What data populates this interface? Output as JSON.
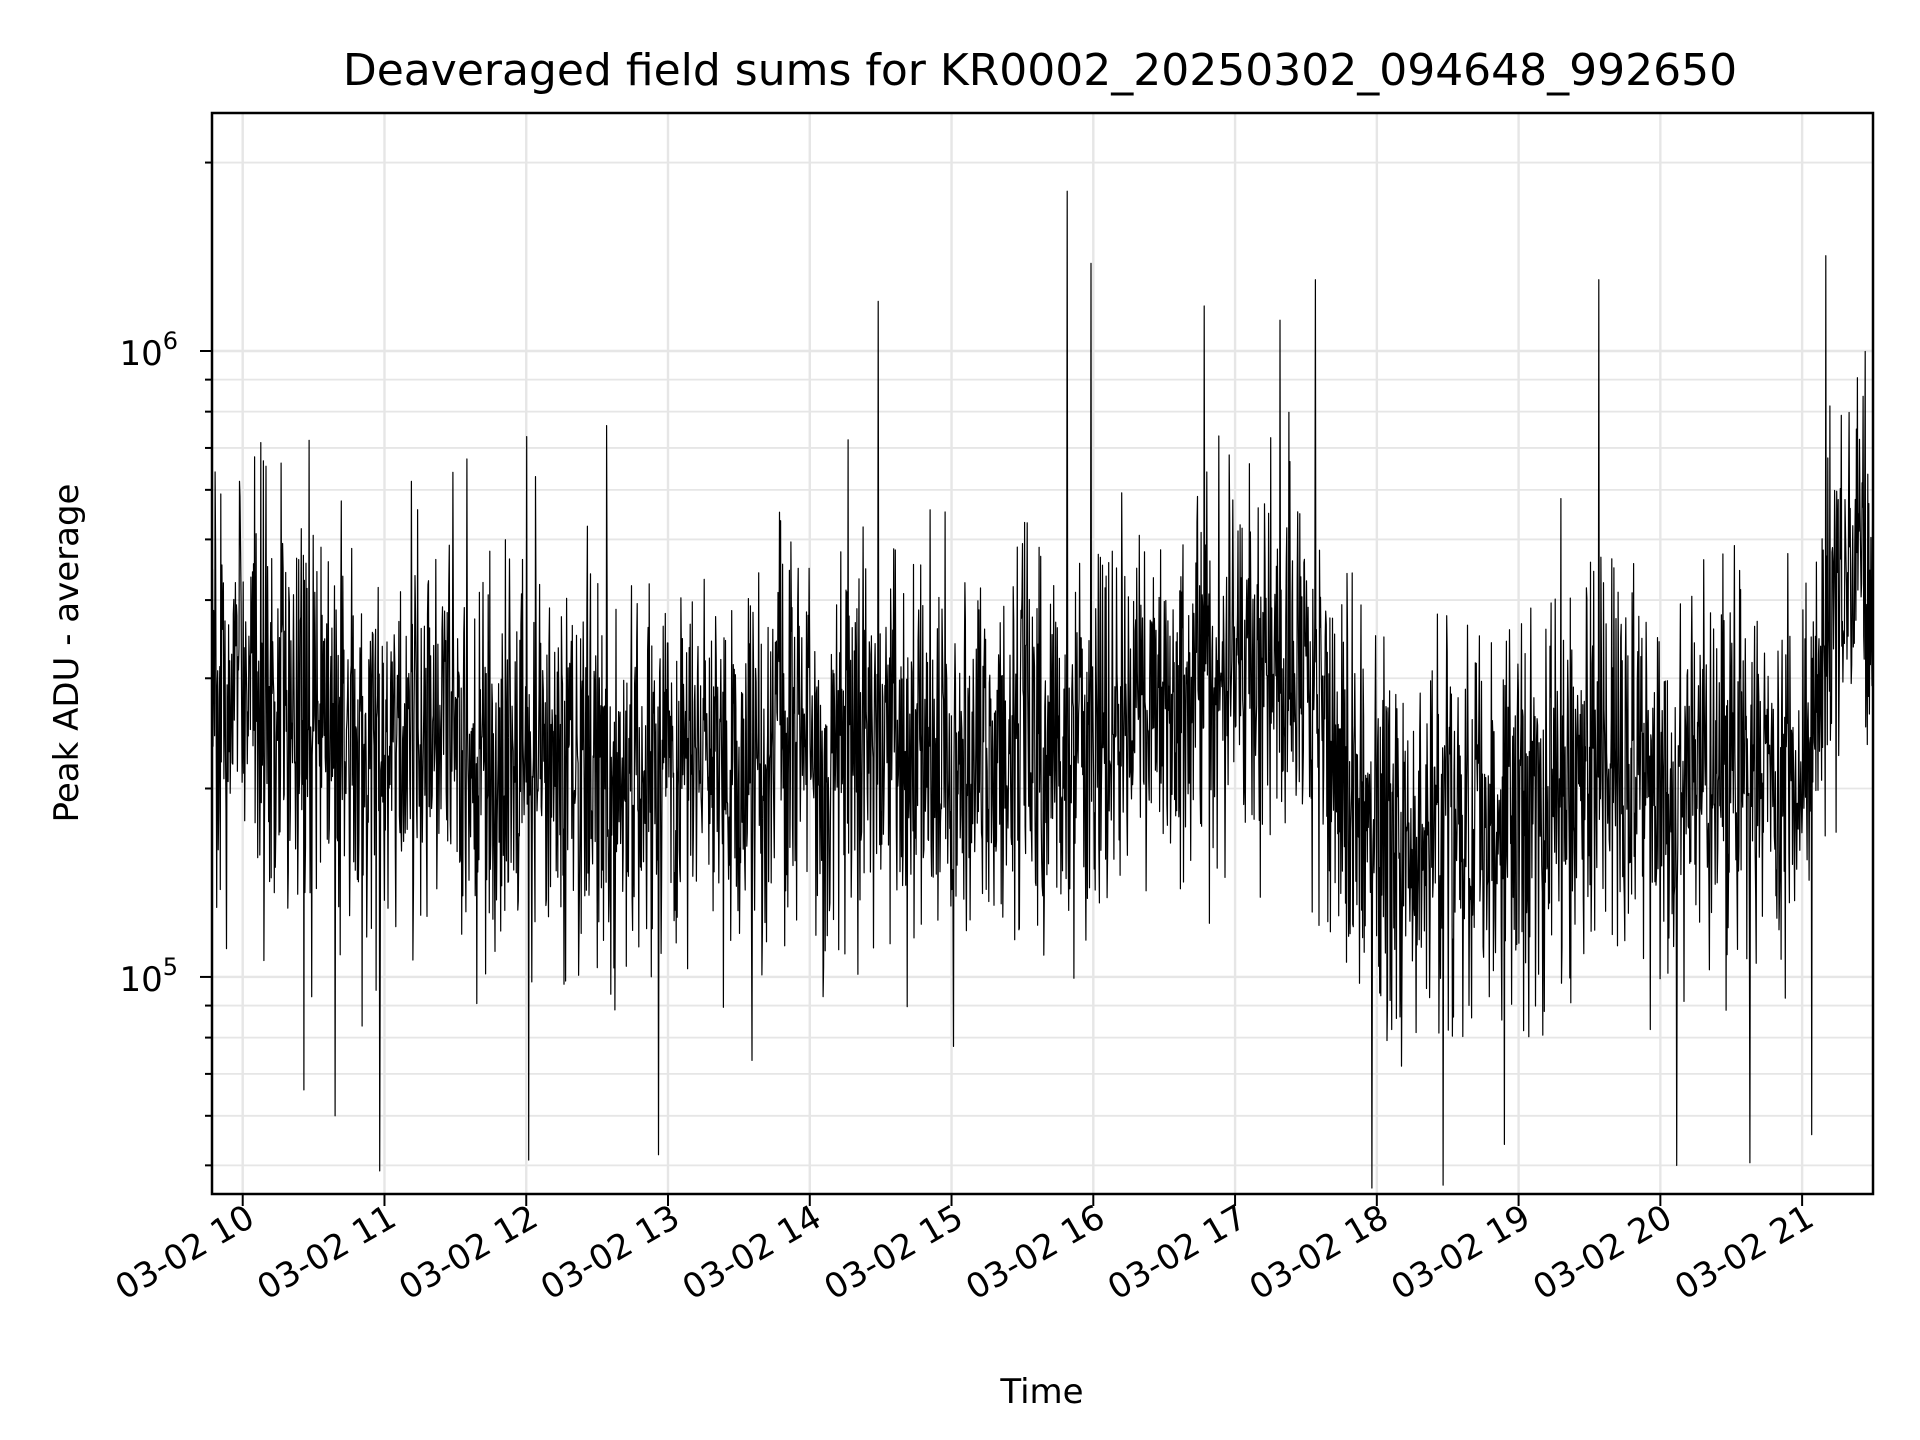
{
  "chart_data": {
    "type": "line",
    "title": "Deaveraged field sums for KR0002_20250302_094648_992650",
    "xlabel": "Time",
    "ylabel": "Peak ADU - average",
    "yscale": "log",
    "xlim": [
      "2025-03-02 09:47",
      "2025-03-02 21:30"
    ],
    "ylim": [
      45000,
      2400000
    ],
    "x_ticks": [
      "2025-03-02 10:00",
      "2025-03-02 11:00",
      "2025-03-02 12:00",
      "2025-03-02 13:00",
      "2025-03-02 14:00",
      "2025-03-02 15:00",
      "2025-03-02 16:00",
      "2025-03-02 17:00",
      "2025-03-02 18:00",
      "2025-03-02 19:00",
      "2025-03-02 20:00",
      "2025-03-02 21:00"
    ],
    "x_tick_labels": [
      "03-02 10",
      "03-02 11",
      "03-02 12",
      "03-02 13",
      "03-02 14",
      "03-02 15",
      "03-02 16",
      "03-02 17",
      "03-02 18",
      "03-02 19",
      "03-02 20",
      "03-02 21"
    ],
    "y_major_ticks": [
      100000,
      1000000
    ],
    "y_tick_base": "10",
    "y_tick_exponents": [
      "5",
      "6"
    ],
    "grid": true,
    "line_color": "#000000",
    "series": [
      {
        "points": [
          [
            "2025-03-02 09:47",
            280000
          ],
          [
            "2025-03-02 10:00",
            300000
          ],
          [
            "2025-03-02 10:30",
            250000
          ],
          [
            "2025-03-02 11:00",
            230000
          ],
          [
            "2025-03-02 11:30",
            240000
          ],
          [
            "2025-03-02 12:00",
            220000
          ],
          [
            "2025-03-02 12:30",
            235000
          ],
          [
            "2025-03-02 13:00",
            210000
          ],
          [
            "2025-03-02 13:30",
            225000
          ],
          [
            "2025-03-02 14:00",
            230000
          ],
          [
            "2025-03-02 14:30",
            240000
          ],
          [
            "2025-03-02 15:00",
            215000
          ],
          [
            "2025-03-02 15:30",
            235000
          ],
          [
            "2025-03-02 16:00",
            250000
          ],
          [
            "2025-03-02 16:30",
            280000
          ],
          [
            "2025-03-02 17:00",
            310000
          ],
          [
            "2025-03-02 17:30",
            300000
          ],
          [
            "2025-03-02 17:45",
            210000
          ],
          [
            "2025-03-02 18:00",
            170000
          ],
          [
            "2025-03-02 18:30",
            165000
          ],
          [
            "2025-03-02 19:00",
            185000
          ],
          [
            "2025-03-02 19:30",
            215000
          ],
          [
            "2025-03-02 20:00",
            210000
          ],
          [
            "2025-03-02 20:30",
            205000
          ],
          [
            "2025-03-02 21:00",
            210000
          ],
          [
            "2025-03-02 21:20",
            480000
          ],
          [
            "2025-03-02 21:30",
            470000
          ]
        ],
        "spikes_high": [
          [
            "2025-03-02 10:28",
            720000
          ],
          [
            "2025-03-02 11:29",
            640000
          ],
          [
            "2025-03-02 12:04",
            630000
          ],
          [
            "2025-03-02 12:34",
            760000
          ],
          [
            "2025-03-02 14:29",
            1200000
          ],
          [
            "2025-03-02 15:49",
            1800000
          ],
          [
            "2025-03-02 15:59",
            1380000
          ],
          [
            "2025-03-02 16:47",
            1180000
          ],
          [
            "2025-03-02 17:19",
            1120000
          ],
          [
            "2025-03-02 17:34",
            1300000
          ],
          [
            "2025-03-02 19:34",
            1300000
          ],
          [
            "2025-03-02 21:10",
            1420000
          ]
        ],
        "spikes_low": [
          [
            "2025-03-02 10:26",
            66000
          ],
          [
            "2025-03-02 10:39",
            60000
          ],
          [
            "2025-03-02 10:58",
            49000
          ],
          [
            "2025-03-02 12:01",
            51000
          ],
          [
            "2025-03-02 12:56",
            52000
          ],
          [
            "2025-03-02 17:58",
            46000
          ],
          [
            "2025-03-02 18:28",
            46500
          ],
          [
            "2025-03-02 18:54",
            54000
          ],
          [
            "2025-03-02 20:07",
            50000
          ],
          [
            "2025-03-02 20:38",
            50500
          ],
          [
            "2025-03-02 21:04",
            56000
          ]
        ]
      }
    ]
  }
}
